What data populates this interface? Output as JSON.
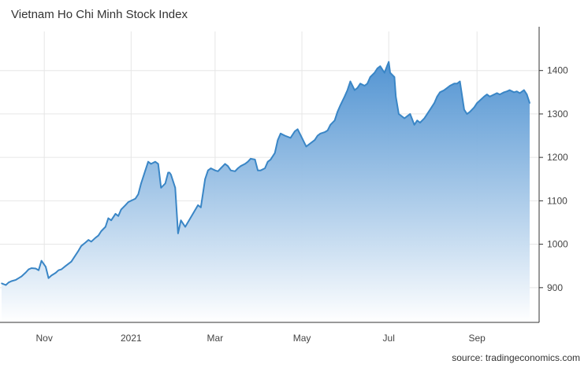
{
  "chart_data": {
    "type": "area",
    "title": "Vietnam Ho Chi Minh Stock Index",
    "xlabel": "",
    "ylabel": "",
    "source": "source: tradingeconomics.com",
    "x_tick_labels": [
      "Nov",
      "2021",
      "Mar",
      "May",
      "Jul",
      "Sep"
    ],
    "y_ticks": [
      900,
      1000,
      1100,
      1200,
      1300,
      1400
    ],
    "ylim": [
      820,
      1490
    ],
    "grid": true,
    "legend": "none",
    "colors": {
      "line": "#3a86c6",
      "fill_top": "#4a8fd0",
      "fill_bottom": "#ffffff",
      "grid": "#e6e6e6",
      "axis": "#333333"
    },
    "series": [
      {
        "x": [
          "2020-10-02",
          "2020-10-05",
          "2020-10-07",
          "2020-10-09",
          "2020-10-12",
          "2020-10-14",
          "2020-10-16",
          "2020-10-19",
          "2020-10-21",
          "2020-10-23",
          "2020-10-26",
          "2020-10-28",
          "2020-10-30",
          "2020-11-02",
          "2020-11-04",
          "2020-11-06",
          "2020-11-09",
          "2020-11-11",
          "2020-11-13",
          "2020-11-16",
          "2020-11-18",
          "2020-11-20",
          "2020-11-23",
          "2020-11-25",
          "2020-11-27",
          "2020-11-30",
          "2020-12-02",
          "2020-12-04",
          "2020-12-07",
          "2020-12-09",
          "2020-12-11",
          "2020-12-14",
          "2020-12-16",
          "2020-12-18",
          "2020-12-21",
          "2020-12-23",
          "2020-12-25",
          "2020-12-28",
          "2020-12-30",
          "2021-01-04",
          "2021-01-06",
          "2021-01-08",
          "2021-01-11",
          "2021-01-13",
          "2021-01-15",
          "2021-01-18",
          "2021-01-20",
          "2021-01-22",
          "2021-01-25",
          "2021-01-27",
          "2021-01-28",
          "2021-01-29",
          "2021-02-01",
          "2021-02-03",
          "2021-02-05",
          "2021-02-08",
          "2021-02-17",
          "2021-02-19",
          "2021-02-22",
          "2021-02-24",
          "2021-02-26",
          "2021-03-01",
          "2021-03-03",
          "2021-03-05",
          "2021-03-08",
          "2021-03-10",
          "2021-03-12",
          "2021-03-15",
          "2021-03-17",
          "2021-03-19",
          "2021-03-22",
          "2021-03-24",
          "2021-03-26",
          "2021-03-29",
          "2021-03-31",
          "2021-04-02",
          "2021-04-05",
          "2021-04-07",
          "2021-04-09",
          "2021-04-12",
          "2021-04-14",
          "2021-04-16",
          "2021-04-19",
          "2021-04-23",
          "2021-04-26",
          "2021-04-28",
          "2021-05-04",
          "2021-05-06",
          "2021-05-10",
          "2021-05-12",
          "2021-05-14",
          "2021-05-17",
          "2021-05-19",
          "2021-05-21",
          "2021-05-24",
          "2021-05-26",
          "2021-05-28",
          "2021-05-31",
          "2021-06-02",
          "2021-06-04",
          "2021-06-07",
          "2021-06-09",
          "2021-06-11",
          "2021-06-14",
          "2021-06-16",
          "2021-06-18",
          "2021-06-21",
          "2021-06-23",
          "2021-06-25",
          "2021-06-28",
          "2021-06-30",
          "2021-07-01",
          "2021-07-02",
          "2021-07-05",
          "2021-07-06",
          "2021-07-08",
          "2021-07-12",
          "2021-07-14",
          "2021-07-16",
          "2021-07-19",
          "2021-07-21",
          "2021-07-23",
          "2021-07-26",
          "2021-07-28",
          "2021-07-30",
          "2021-08-02",
          "2021-08-04",
          "2021-08-06",
          "2021-08-09",
          "2021-08-11",
          "2021-08-13",
          "2021-08-16",
          "2021-08-18",
          "2021-08-20",
          "2021-08-23",
          "2021-08-25",
          "2021-08-27",
          "2021-08-30",
          "2021-09-01",
          "2021-09-06",
          "2021-09-08",
          "2021-09-10",
          "2021-09-13",
          "2021-09-15",
          "2021-09-17",
          "2021-09-20",
          "2021-09-22",
          "2021-09-24",
          "2021-09-27",
          "2021-09-29",
          "2021-10-01",
          "2021-10-04",
          "2021-10-06",
          "2021-10-08"
        ],
        "values": [
          910,
          906,
          912,
          915,
          918,
          922,
          926,
          935,
          942,
          945,
          944,
          940,
          962,
          948,
          922,
          928,
          934,
          940,
          942,
          950,
          955,
          960,
          975,
          985,
          996,
          1004,
          1010,
          1006,
          1015,
          1020,
          1030,
          1040,
          1060,
          1055,
          1070,
          1065,
          1080,
          1090,
          1097,
          1105,
          1115,
          1140,
          1170,
          1190,
          1185,
          1190,
          1185,
          1130,
          1140,
          1165,
          1165,
          1160,
          1130,
          1025,
          1055,
          1040,
          1090,
          1085,
          1150,
          1170,
          1175,
          1170,
          1168,
          1175,
          1185,
          1180,
          1170,
          1168,
          1175,
          1180,
          1185,
          1190,
          1197,
          1195,
          1170,
          1170,
          1175,
          1190,
          1195,
          1210,
          1240,
          1255,
          1250,
          1245,
          1260,
          1265,
          1225,
          1230,
          1240,
          1250,
          1255,
          1258,
          1262,
          1275,
          1285,
          1305,
          1320,
          1340,
          1355,
          1375,
          1355,
          1360,
          1370,
          1365,
          1370,
          1385,
          1395,
          1405,
          1410,
          1395,
          1412,
          1420,
          1395,
          1385,
          1340,
          1300,
          1290,
          1295,
          1300,
          1275,
          1285,
          1280,
          1290,
          1300,
          1310,
          1325,
          1340,
          1350,
          1355,
          1360,
          1365,
          1370,
          1370,
          1375,
          1310,
          1300,
          1305,
          1315,
          1325,
          1340,
          1345,
          1340,
          1345,
          1348,
          1345,
          1350,
          1352,
          1355,
          1350,
          1352,
          1348,
          1355,
          1345,
          1325
        ]
      }
    ]
  }
}
